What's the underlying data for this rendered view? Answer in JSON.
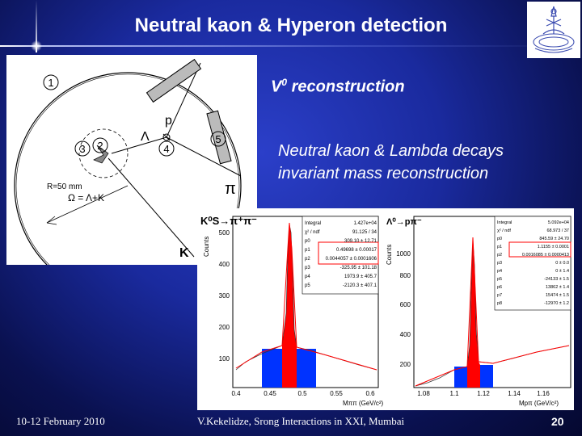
{
  "slide": {
    "title": "Neutral kaon & Hyperon detection",
    "subtitle_main": "V",
    "subtitle_sup": "0",
    "subtitle_rest": " reconstruction",
    "text_line1": "Neutral kaon & Lambda decays",
    "text_line2": "invariant mass reconstruction"
  },
  "detector": {
    "labels": [
      "1",
      "2",
      "3",
      "4",
      "5"
    ],
    "p_label": "p",
    "lambda_label": "Λ",
    "pi_label": "π",
    "k_label": "K",
    "radius_label": "R=50 mm",
    "omega_label": "Ω = Λ+K"
  },
  "plots": {
    "left": {
      "title": "K⁰S→π⁺π⁻",
      "ylabel": "Counts",
      "xlabel": "Mππ (GeV/c²)",
      "yticks": [
        "100",
        "200",
        "300",
        "400",
        "500"
      ],
      "xticks": [
        "0.4",
        "0.45",
        "0.5",
        "0.55",
        "0.6"
      ],
      "stats": [
        [
          "Integral",
          "1.427e+04"
        ],
        [
          "χ² / ndf",
          "91.125 / 34"
        ],
        [
          "p0",
          "309.10 ± 12.71"
        ],
        [
          "p1",
          "0.49698 ± 0.00017"
        ],
        [
          "p2",
          "0.0044057 ± 0.0001606"
        ],
        [
          "p3",
          "-325.95 ± 101.18"
        ],
        [
          "p4",
          "1973.9 ± 405.7"
        ],
        [
          "p5",
          "-2120.3 ± 407.1"
        ]
      ]
    },
    "right": {
      "title": "Λ⁰→pπ⁻",
      "ylabel": "Counts",
      "xlabel": "Mpπ (GeV/c²)",
      "yticks": [
        "200",
        "400",
        "600",
        "800",
        "1000"
      ],
      "xticks": [
        "1.08",
        "1.1",
        "1.12",
        "1.14",
        "1.16"
      ],
      "stats": [
        [
          "Integral",
          "5.092e+04"
        ],
        [
          "χ² / ndf",
          "68.973 / 37"
        ],
        [
          "p0",
          "845.59 ± 24.70"
        ],
        [
          "p1",
          "1.1155 ± 0.0001"
        ],
        [
          "p2",
          "0.0016085 ± 0.0000413"
        ],
        [
          "p3",
          "0 ± 0.0"
        ],
        [
          "p4",
          "0 ± 1.4"
        ],
        [
          "p5",
          "-24133 ± 1.5"
        ],
        [
          "p6",
          "13862 ± 1.4"
        ],
        [
          "p7",
          "15474 ± 1.5"
        ],
        [
          "p8",
          "-12970 ± 1.2"
        ]
      ]
    }
  },
  "footer": {
    "date": "10-12 February 2010",
    "author": "V.Kekelidze, Srong Interactions in XXI, Mumbai",
    "page": "20"
  },
  "colors": {
    "background": "#1a2a9e",
    "peak": "#ff0000",
    "side": "#0033ff",
    "fit": "#ff0000"
  }
}
